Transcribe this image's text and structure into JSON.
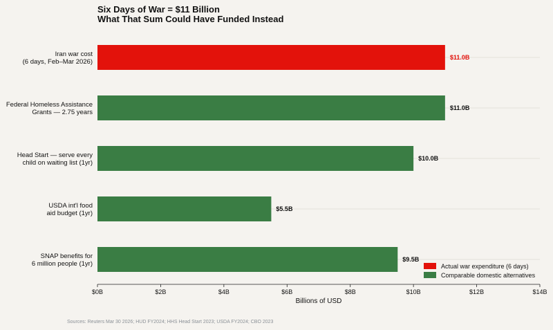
{
  "chart_data": {
    "type": "bar",
    "orientation": "horizontal",
    "title": [
      "Six Days of War = $11 Billion",
      "What That Sum Could Have Funded Instead"
    ],
    "xlabel": "Billions of USD",
    "ylabel": "",
    "xlim": [
      0,
      14
    ],
    "xticks": [
      0,
      2,
      4,
      6,
      8,
      10,
      12,
      14
    ],
    "xtick_labels": [
      "$0B",
      "$2B",
      "$4B",
      "$6B",
      "$8B",
      "$10B",
      "$12B",
      "$14B"
    ],
    "grid": "horizontal lines at each category",
    "categories": [
      [
        "Iran war cost",
        "(6 days, Feb–Mar 2026)"
      ],
      [
        "Federal Homeless Assistance",
        "Grants — 2.75 years"
      ],
      [
        "Head Start — serve every",
        "child on waiting list (1yr)"
      ],
      [
        "USDA int'l food",
        "aid budget (1yr)"
      ],
      [
        "SNAP benefits for",
        "6 million people (1yr)"
      ]
    ],
    "values": [
      11.0,
      11.0,
      10.0,
      5.5,
      9.5
    ],
    "value_labels": [
      "$11.0B",
      "$11.0B",
      "$10.0B",
      "$5.5B",
      "$9.5B"
    ],
    "groups": [
      "war",
      "domestic",
      "domestic",
      "domestic",
      "domestic"
    ],
    "colors": {
      "war": "#e3120b",
      "domestic": "#3a7d44"
    },
    "label_colors": {
      "war": "#e3120b",
      "domestic": "#111111"
    },
    "legend": {
      "placement": "bottom-right",
      "entries": [
        {
          "label": "Actual war expenditure (6 days)",
          "group": "war"
        },
        {
          "label": "Comparable domestic alternatives",
          "group": "domestic"
        }
      ]
    },
    "source": "Sources: Reuters Mar 30 2026; HUD FY2024; HHS Head Start 2023; USDA FY2024; CBO 2023"
  }
}
